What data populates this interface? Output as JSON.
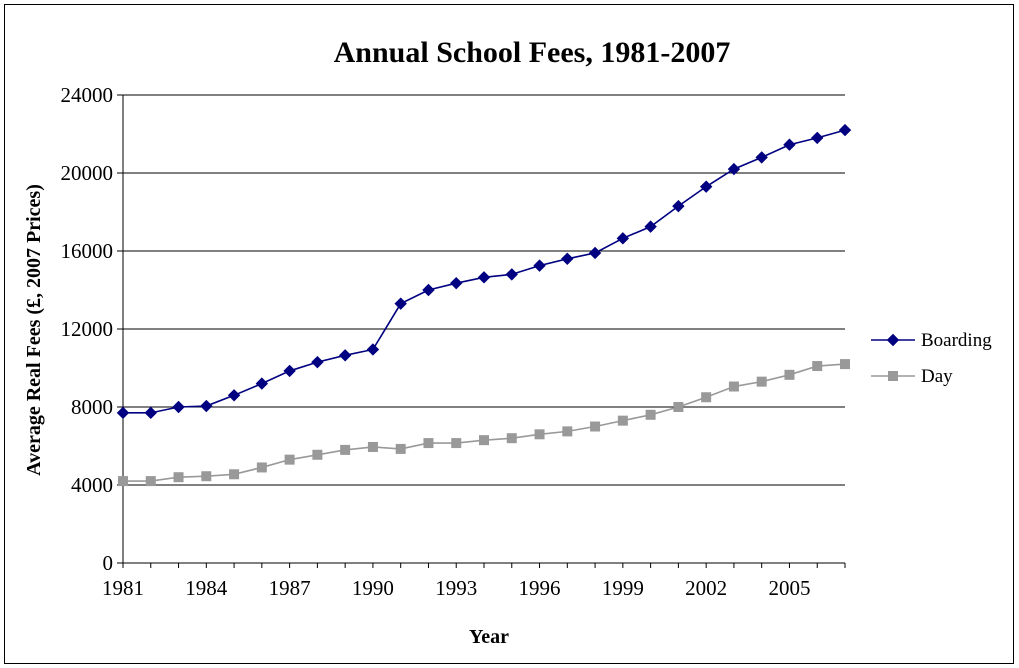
{
  "chart_data": {
    "type": "line",
    "title": "Annual School Fees, 1981-2007",
    "xlabel": "Year",
    "ylabel": "Average Real Fees (£, 2007 Prices)",
    "x": [
      1981,
      1982,
      1983,
      1984,
      1985,
      1986,
      1987,
      1988,
      1989,
      1990,
      1991,
      1992,
      1993,
      1994,
      1995,
      1996,
      1997,
      1998,
      1999,
      2000,
      2001,
      2002,
      2003,
      2004,
      2005,
      2006,
      2007
    ],
    "x_ticks": [
      "1981",
      "1984",
      "1987",
      "1990",
      "1993",
      "1996",
      "1999",
      "2002",
      "2005"
    ],
    "xlim": [
      1981,
      2007
    ],
    "ylim": [
      0,
      24000
    ],
    "y_ticks": [
      "0",
      "4000",
      "8000",
      "12000",
      "16000",
      "20000",
      "24000"
    ],
    "grid": "horizontal",
    "legend_position": "right",
    "series": [
      {
        "name": "Boarding",
        "color": "#000080",
        "marker": "diamond",
        "values": [
          7700,
          7700,
          8000,
          8050,
          8600,
          9200,
          9850,
          10300,
          10650,
          10950,
          13300,
          14000,
          14350,
          14650,
          14800,
          15250,
          15600,
          15900,
          16650,
          17250,
          18300,
          19300,
          20200,
          20800,
          21450,
          21800,
          22200
        ]
      },
      {
        "name": "Day",
        "color": "#999999",
        "marker": "square",
        "values": [
          4200,
          4200,
          4400,
          4450,
          4550,
          4900,
          5300,
          5550,
          5800,
          5950,
          5850,
          6150,
          6150,
          6300,
          6400,
          6600,
          6750,
          7000,
          7300,
          7600,
          8000,
          8500,
          9050,
          9300,
          9650,
          10100,
          10200
        ]
      }
    ]
  }
}
